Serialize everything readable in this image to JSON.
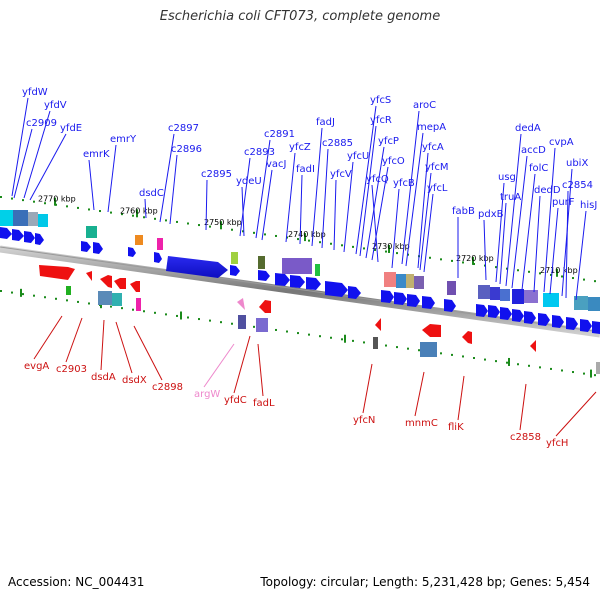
{
  "title": "Escherichia coli CFT073, complete genome",
  "footer": {
    "accession": "Accession: NC_004431",
    "summary": "Topology: circular; Length: 5,231,428 bp; Genes: 5,454"
  },
  "colors": {
    "forward": "#1414ee",
    "reverse": "#ee1111",
    "trna": "#ee88cc",
    "label_forward": "#1a1aee",
    "label_reverse": "#cc1111"
  },
  "kbp_marks": [
    "2770 kbp",
    "2760 kbp",
    "2750 kbp",
    "2740 kbp",
    "2730 kbp",
    "2720 kbp",
    "2710 kbp"
  ],
  "top_genes": [
    "yfdW",
    "yfdV",
    "c2909",
    "yfdE",
    "emrK",
    "emrY",
    "dsdC",
    "c2897",
    "c2896",
    "c2895",
    "c2893",
    "ydeU",
    "c2891",
    "vacJ",
    "yfcZ",
    "fadI",
    "fadJ",
    "c2885",
    "yfcV",
    "yfcU",
    "yfcS",
    "yfcR",
    "yfcP",
    "yfcO",
    "yfcQ",
    "aroC",
    "mepA",
    "yfcB",
    "yfcA",
    "yfcM",
    "yfcL",
    "fabB",
    "pdxB",
    "usg",
    "truA",
    "dedA",
    "accD",
    "folC",
    "dedD",
    "cvpA",
    "purF",
    "ubiX",
    "c2854",
    "hisJ"
  ],
  "bottom_genes": [
    "evgA",
    "c2903",
    "dsdA",
    "dsdX",
    "c2898",
    "argW",
    "yfdC",
    "fadL",
    "yfcN",
    "mnmC",
    "fliK",
    "c2858",
    "yfcH"
  ]
}
